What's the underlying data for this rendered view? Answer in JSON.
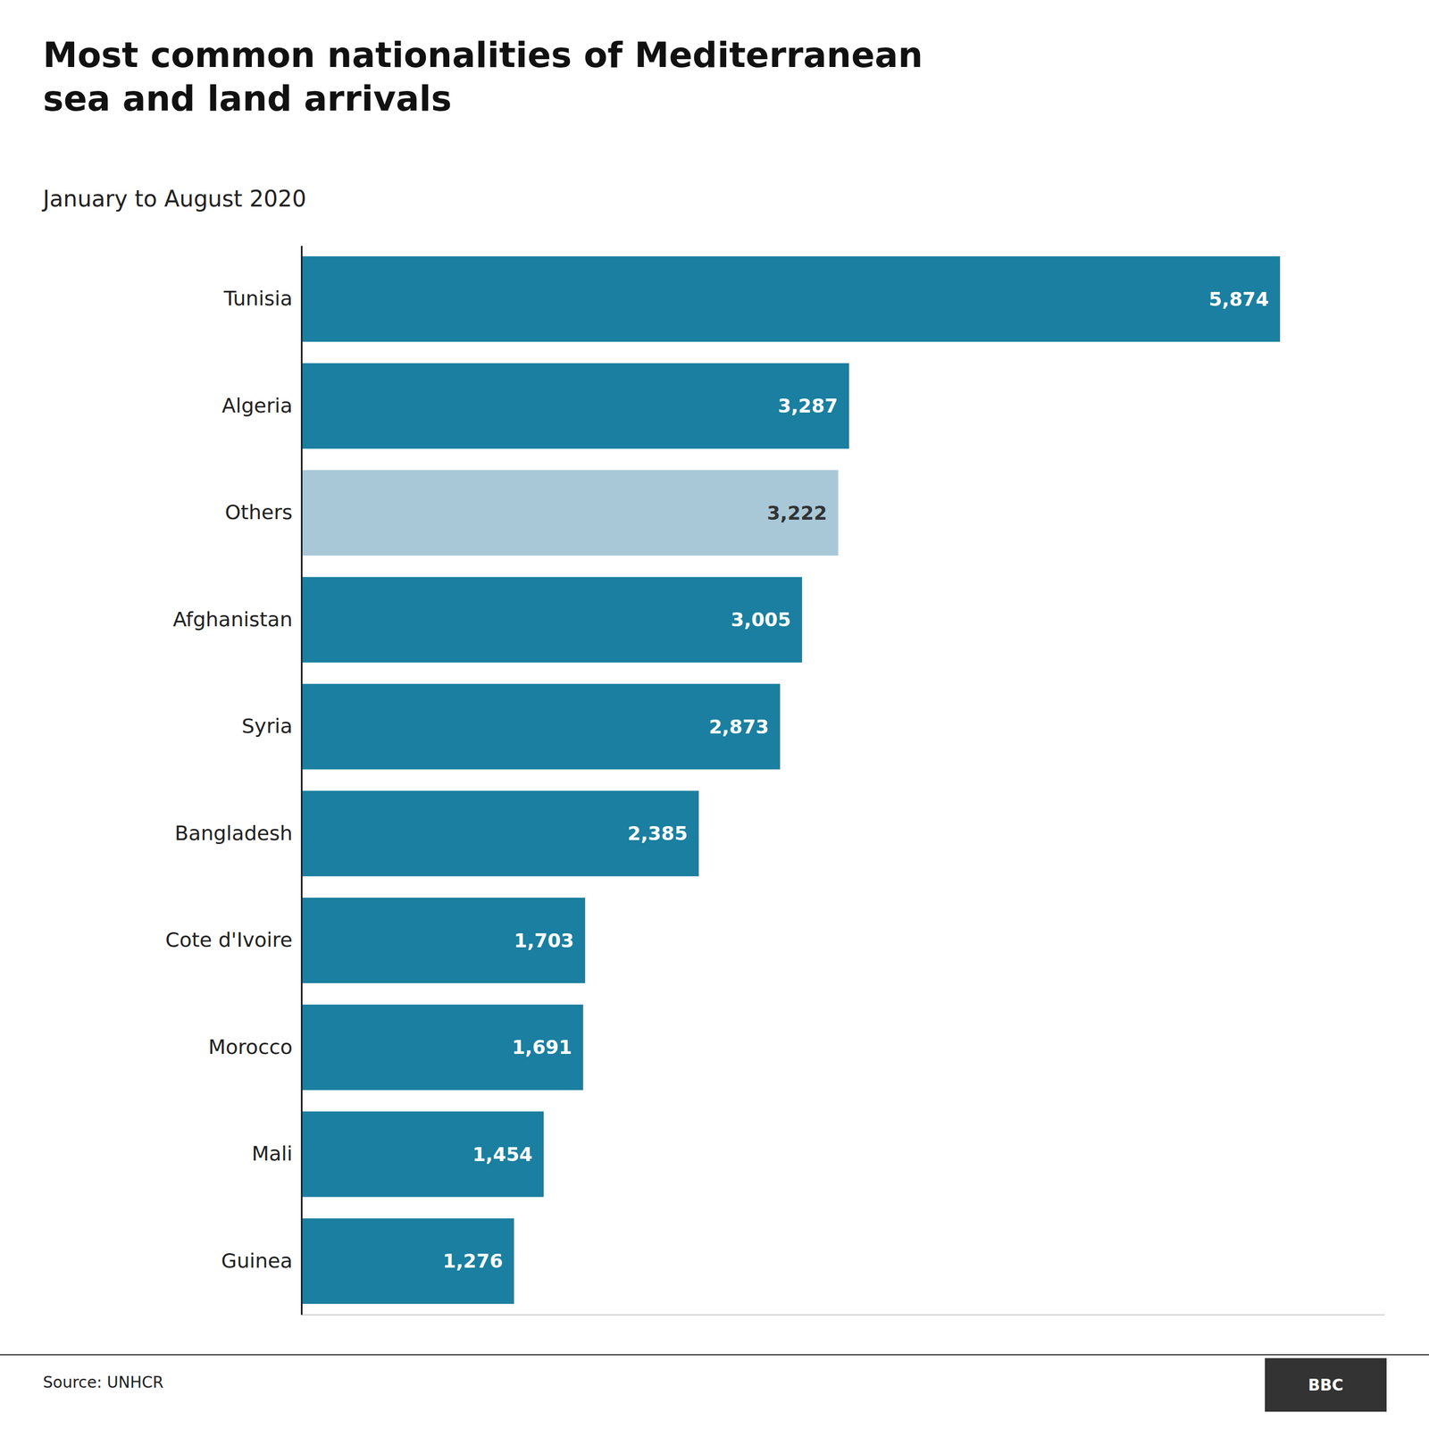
{
  "chart_data": {
    "type": "bar",
    "orientation": "horizontal",
    "title": "Most common nationalities of Mediterranean\nsea and land arrivals",
    "subtitle": "January to August 2020",
    "categories": [
      "Tunisia",
      "Algeria",
      "Others",
      "Afghanistan",
      "Syria",
      "Bangladesh",
      "Cote d'Ivoire",
      "Morocco",
      "Mali",
      "Guinea"
    ],
    "values": [
      5874,
      3287,
      3222,
      3005,
      2873,
      2385,
      1703,
      1691,
      1454,
      1276
    ],
    "value_labels": [
      "5,874",
      "3,287",
      "3,222",
      "3,005",
      "2,873",
      "2,385",
      "1,703",
      "1,691",
      "1,454",
      "1,276"
    ],
    "colors": [
      "#1a7fa0",
      "#1a7fa0",
      "#a8c8d8",
      "#1a7fa0",
      "#1a7fa0",
      "#1a7fa0",
      "#1a7fa0",
      "#1a7fa0",
      "#1a7fa0",
      "#1a7fa0"
    ],
    "xlim": [
      0,
      6500
    ],
    "data_labels": true,
    "tick_labels": "y",
    "grid": false,
    "annotations": [
      "Source: UNHCR",
      "BBC"
    ]
  }
}
